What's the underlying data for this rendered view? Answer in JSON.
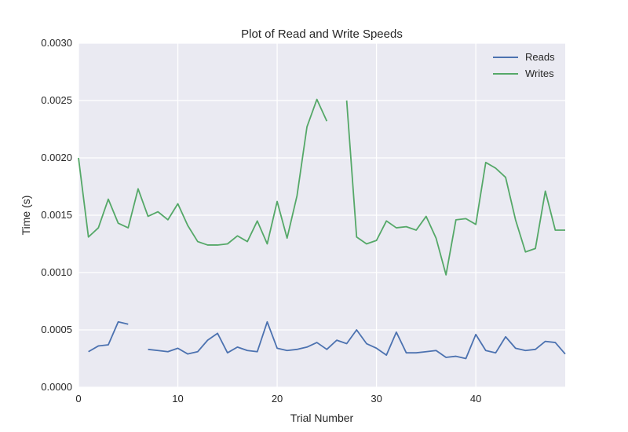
{
  "chart_data": {
    "type": "line",
    "title": "Plot of Read and Write Speeds",
    "xlabel": "Trial Number",
    "ylabel": "Time (s)",
    "xlim": [
      0,
      49
    ],
    "ylim": [
      0,
      0.003
    ],
    "xticks": [
      0,
      10,
      20,
      30,
      40
    ],
    "yticks": [
      0,
      0.0005,
      0.001,
      0.0015,
      0.002,
      0.0025,
      0.003
    ],
    "ytick_labels": [
      "0.0000",
      "0.0005",
      "0.0010",
      "0.0015",
      "0.0020",
      "0.0025",
      "0.0030"
    ],
    "grid": true,
    "legend_position": "top-right",
    "x": [
      0,
      1,
      2,
      3,
      4,
      5,
      6,
      7,
      8,
      9,
      10,
      11,
      12,
      13,
      14,
      15,
      16,
      17,
      18,
      19,
      20,
      21,
      22,
      23,
      24,
      25,
      26,
      27,
      28,
      29,
      30,
      31,
      32,
      33,
      34,
      35,
      36,
      37,
      38,
      39,
      40,
      41,
      42,
      43,
      44,
      45,
      46,
      47,
      48,
      49
    ],
    "series": [
      {
        "name": "Reads",
        "color": "#4c72b0",
        "values": [
          null,
          0.00031,
          0.00036,
          0.00037,
          0.00057,
          0.00055,
          null,
          0.00033,
          0.00032,
          0.00031,
          0.00034,
          0.00029,
          0.00031,
          0.00041,
          0.00047,
          0.0003,
          0.00035,
          0.00032,
          0.00031,
          0.00057,
          0.00034,
          0.00032,
          0.00033,
          0.00035,
          0.00039,
          0.00033,
          0.00041,
          0.00038,
          0.0005,
          0.00038,
          0.00034,
          0.00028,
          0.00048,
          0.0003,
          0.0003,
          0.00031,
          0.00032,
          0.00026,
          0.00027,
          0.00025,
          0.00046,
          0.00032,
          0.0003,
          0.00044,
          0.00034,
          0.00032,
          0.00033,
          0.0004,
          0.00039,
          0.00029
        ]
      },
      {
        "name": "Writes",
        "color": "#55a868",
        "values": [
          0.002,
          0.00131,
          0.00139,
          0.00164,
          0.00143,
          0.00139,
          0.00173,
          0.00149,
          0.00153,
          0.00146,
          0.0016,
          0.00141,
          0.00127,
          0.00124,
          0.00124,
          0.00125,
          0.00132,
          0.00127,
          0.00145,
          0.00125,
          0.00162,
          0.0013,
          0.00167,
          0.00227,
          0.00251,
          0.00232,
          null,
          0.0025,
          0.00131,
          0.00125,
          0.00128,
          0.00145,
          0.00139,
          0.0014,
          0.00137,
          0.00149,
          0.0013,
          0.00098,
          0.00146,
          0.00147,
          0.00142,
          0.00196,
          0.00191,
          0.00183,
          0.00146,
          0.00118,
          0.00121,
          0.00171,
          0.00137,
          0.00137
        ]
      }
    ]
  }
}
